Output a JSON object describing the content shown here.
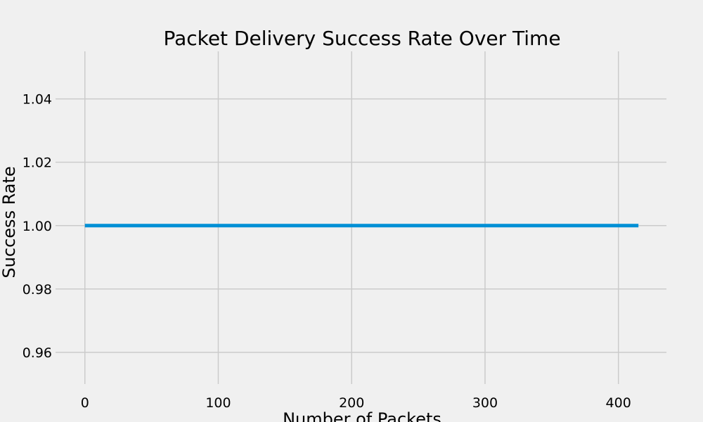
{
  "chart_data": {
    "type": "line",
    "title": "Packet Delivery Success Rate Over Time",
    "xlabel": "Number of Packets",
    "ylabel": "Success Rate",
    "xlim": [
      -22,
      436
    ],
    "ylim": [
      0.95,
      1.055
    ],
    "xticks": [
      0,
      100,
      200,
      300,
      400
    ],
    "yticks": [
      0.96,
      0.98,
      1.0,
      1.02,
      1.04
    ],
    "ytick_labels": [
      "0.96",
      "0.98",
      "1.00",
      "1.02",
      "1.04"
    ],
    "xtick_labels": [
      "0",
      "100",
      "200",
      "300",
      "400"
    ],
    "grid": true,
    "series": [
      {
        "color": "#008fd5",
        "x": [
          0,
          415
        ],
        "y": [
          1.0,
          1.0
        ]
      }
    ]
  }
}
